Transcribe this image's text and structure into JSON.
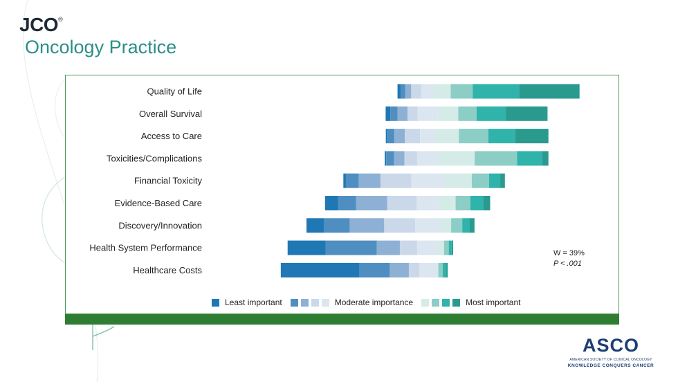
{
  "brand": {
    "journal_short": "JCO",
    "registered_mark": "®",
    "journal_name": "Oncology Practice"
  },
  "footer_logo": {
    "name": "ASCO",
    "subtitle": "AMERICAN SOCIETY OF CLINICAL ONCOLOGY",
    "tagline": "KNOWLEDGE CONQUERS CANCER"
  },
  "stats": {
    "w_text": "W = 39%",
    "p_text": "P < .001"
  },
  "legend": {
    "least_label": "Least important",
    "moderate_label": "Moderate importance",
    "most_label": "Most important"
  },
  "colors": {
    "ranks": [
      "#1f78b4",
      "#4f8ec0",
      "#8eb0d4",
      "#cad8ea",
      "#dce6f1",
      "#d4ebe8",
      "#8ccdc6",
      "#2fb3aa",
      "#2a9a8f"
    ],
    "panel_border": "#4f9a5a",
    "footer_bar": "#2e7d32",
    "brand_dark": "#1f2a36",
    "brand_teal": "#2a8f86",
    "asco_blue": "#1d3f73"
  },
  "chart_data": {
    "type": "bar",
    "subtype": "diverging-stacked",
    "x_axis": "none",
    "grid": false,
    "legend_position": "bottom",
    "series_names": [
      "Least important",
      "",
      "",
      "",
      "Moderate importance",
      "",
      "",
      "",
      "Most important"
    ],
    "categories": [
      "Quality of Life",
      "Overall Survival",
      "Access to Care",
      "Toxicities/Complications",
      "Financial Toxicity",
      "Evidence-Based Care",
      "Discovery/Innovation",
      "Health System Performance",
      "Healthcare Costs"
    ],
    "rank_shares": [
      [
        0.9,
        1.2,
        1.7,
        2.8,
        3.5,
        4.7,
        6.1,
        12.9,
        16.8
      ],
      [
        1.3,
        2.0,
        2.8,
        2.8,
        5.5,
        5.8,
        5.1,
        8.1,
        11.6
      ],
      [
        0.4,
        2.0,
        2.9,
        4.2,
        4.2,
        6.6,
        8.2,
        7.5,
        9.2
      ],
      [
        0.4,
        2.2,
        2.9,
        3.5,
        5.8,
        10.2,
        11.8,
        7.0,
        1.7
      ],
      [
        0.7,
        3.6,
        6.0,
        8.6,
        9.0,
        7.8,
        4.8,
        3.1,
        1.3
      ],
      [
        3.6,
        5.0,
        8.7,
        8.2,
        6.0,
        4.8,
        4.1,
        3.6,
        1.9
      ],
      [
        4.8,
        7.2,
        9.6,
        8.6,
        6.9,
        3.1,
        3.1,
        2.0,
        1.4
      ],
      [
        10.6,
        14.2,
        6.4,
        4.8,
        5.8,
        1.7,
        1.3,
        0.8,
        0.4
      ],
      [
        21.9,
        8.4,
        5.3,
        2.9,
        4.6,
        0.7,
        1.2,
        1.0,
        0.4
      ]
    ],
    "stat_W": "W = 39%",
    "stat_P": "P < .001"
  }
}
